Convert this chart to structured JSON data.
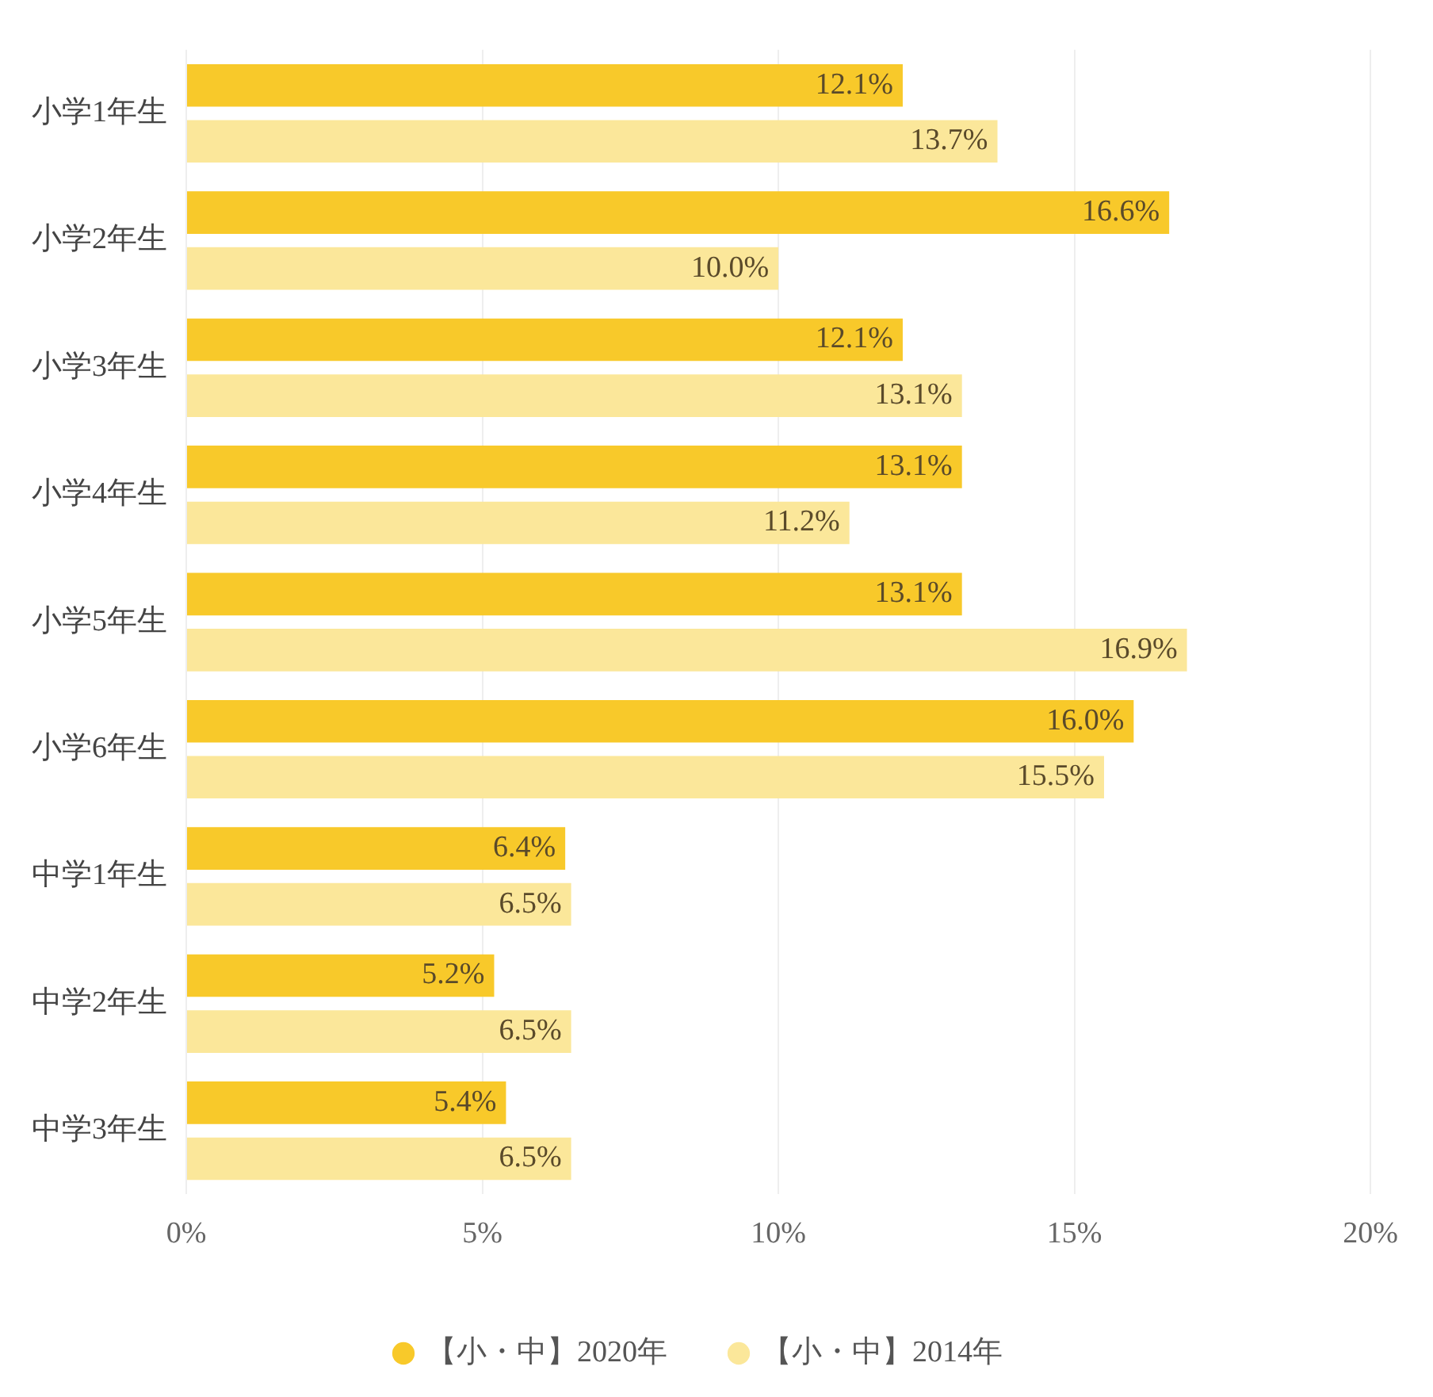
{
  "chart_data": {
    "type": "bar",
    "orientation": "horizontal",
    "categories": [
      "小学1年生",
      "小学2年生",
      "小学3年生",
      "小学4年生",
      "小学5年生",
      "小学6年生",
      "中学1年生",
      "中学2年生",
      "中学3年生"
    ],
    "series": [
      {
        "name": "【小・中】2020年",
        "color": "#f8c92a",
        "values": [
          12.1,
          16.6,
          12.1,
          13.1,
          13.1,
          16.0,
          6.4,
          5.2,
          5.4
        ]
      },
      {
        "name": "【小・中】2014年",
        "color": "#fbe79a",
        "values": [
          13.7,
          10.0,
          13.1,
          11.2,
          16.9,
          15.5,
          6.5,
          6.5,
          6.5
        ]
      }
    ],
    "xlim": [
      0,
      20
    ],
    "xticks": [
      {
        "value": 0,
        "label": "0%"
      },
      {
        "value": 5,
        "label": "5%"
      },
      {
        "value": 10,
        "label": "10%"
      },
      {
        "value": 15,
        "label": "15%"
      },
      {
        "value": 20,
        "label": "20%"
      }
    ],
    "value_labels": [
      [
        "12.1%",
        "16.6%",
        "12.1%",
        "13.1%",
        "13.1%",
        "16.0%",
        "6.4%",
        "5.2%",
        "5.4%"
      ],
      [
        "13.7%",
        "10.0%",
        "13.1%",
        "11.2%",
        "16.9%",
        "15.5%",
        "6.5%",
        "6.5%",
        "6.5%"
      ]
    ],
    "grid": "x",
    "legend": "bottom",
    "marker": "circle"
  }
}
